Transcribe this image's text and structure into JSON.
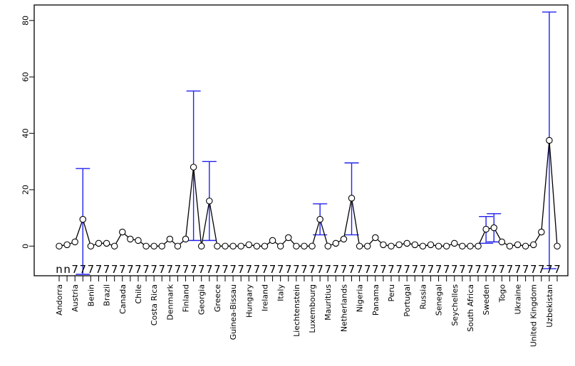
{
  "chart_data": {
    "type": "line",
    "title": "",
    "xlabel": "",
    "ylabel": "",
    "ylim": [
      -10,
      85
    ],
    "yticks": [
      0,
      20,
      40,
      60,
      80
    ],
    "grid": false,
    "labeled_categories": [
      "Andorra",
      "Austria",
      "Benin",
      "Brazil",
      "Canada",
      "Chile",
      "Costa Rica",
      "Denmark",
      "Finland",
      "Georgia",
      "Greece",
      "Guinea-Bissau",
      "Hungary",
      "Ireland",
      "Italy",
      "Liechtenstein",
      "Luxembourg",
      "Mauritius",
      "Netherlands",
      "Nigeria",
      "Panama",
      "Peru",
      "Portugal",
      "Russia",
      "Senegal",
      "Seychelles",
      "South Africa",
      "Sweden",
      "Togo",
      "Ukraine",
      "United Kingdom",
      "Uzbekistan"
    ],
    "values": [
      0,
      0.5,
      1.5,
      9.5,
      0,
      1,
      1,
      0,
      5,
      2.5,
      2,
      0,
      0,
      0,
      2.5,
      0,
      2.5,
      28,
      0,
      16,
      0,
      0,
      0,
      0,
      0.5,
      0,
      0,
      2,
      0,
      3,
      0,
      0,
      0,
      9.5,
      0,
      1,
      2.5,
      17,
      0,
      0,
      3,
      0.5,
      0,
      0.5,
      1,
      0.5,
      0,
      0.5,
      0,
      0,
      1,
      0,
      0,
      0,
      6,
      6.5,
      1.5,
      0,
      0.5,
      0,
      0.5,
      5,
      37.5,
      0
    ],
    "error_bars": [
      {
        "index": 3,
        "low": -10,
        "high": 27.5
      },
      {
        "index": 17,
        "low": 2,
        "high": 55
      },
      {
        "index": 19,
        "low": 2,
        "high": 30
      },
      {
        "index": 33,
        "low": 4,
        "high": 15
      },
      {
        "index": 37,
        "low": 4,
        "high": 29.5
      },
      {
        "index": 54,
        "low": 1,
        "high": 10.5
      },
      {
        "index": 55,
        "low": 1.5,
        "high": 11.5
      },
      {
        "index": 62,
        "low": -8,
        "high": 83
      }
    ],
    "n_labels": [
      "n",
      "n",
      "7",
      "7",
      "7",
      "7",
      "7",
      "7",
      "7",
      "7",
      "7",
      "7",
      "7",
      "7",
      "7",
      "7",
      "7",
      "7",
      "7",
      "7",
      "7",
      "7",
      "7",
      "7",
      "7",
      "7",
      "7",
      "7",
      "7",
      "7",
      "7",
      "7",
      "7",
      "7",
      "7",
      "7",
      "7",
      "7",
      "7",
      "7",
      "7",
      "7",
      "7",
      "7",
      "7",
      "7",
      "7",
      "7",
      "7",
      "7",
      "7",
      "7",
      "7",
      "7",
      "7",
      "7",
      "7",
      "7",
      "7",
      "7",
      "7",
      "7",
      "7",
      "7"
    ],
    "colors": {
      "line": "#000000",
      "error_bar": "#2222ee",
      "axis": "#000000"
    }
  }
}
